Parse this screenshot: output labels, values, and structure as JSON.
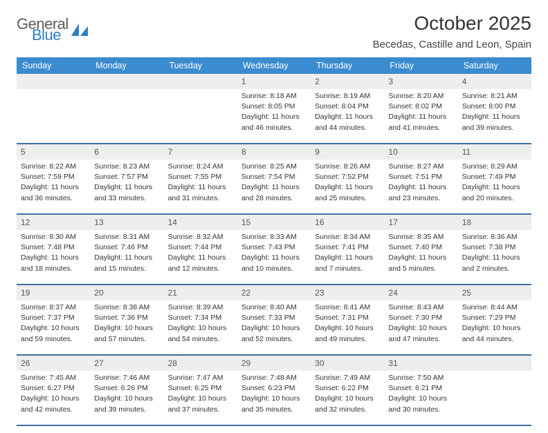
{
  "brand": {
    "word1": "General",
    "word2": "Blue",
    "accent": "#2f7dc4"
  },
  "title": "October 2025",
  "location": "Becedas, Castille and Leon, Spain",
  "colors": {
    "header_bg": "#3b8bd0",
    "header_text": "#ffffff",
    "rule": "#3b6fa0",
    "daynum_bg": "#eeeeee",
    "page_bg": "#ffffff",
    "body_text": "#333333"
  },
  "dow": [
    "Sunday",
    "Monday",
    "Tuesday",
    "Wednesday",
    "Thursday",
    "Friday",
    "Saturday"
  ],
  "weeks": [
    [
      null,
      null,
      null,
      {
        "n": "1",
        "sr": "Sunrise: 8:18 AM",
        "ss": "Sunset: 8:05 PM",
        "d1": "Daylight: 11 hours",
        "d2": "and 46 minutes."
      },
      {
        "n": "2",
        "sr": "Sunrise: 8:19 AM",
        "ss": "Sunset: 8:04 PM",
        "d1": "Daylight: 11 hours",
        "d2": "and 44 minutes."
      },
      {
        "n": "3",
        "sr": "Sunrise: 8:20 AM",
        "ss": "Sunset: 8:02 PM",
        "d1": "Daylight: 11 hours",
        "d2": "and 41 minutes."
      },
      {
        "n": "4",
        "sr": "Sunrise: 8:21 AM",
        "ss": "Sunset: 8:00 PM",
        "d1": "Daylight: 11 hours",
        "d2": "and 39 minutes."
      }
    ],
    [
      {
        "n": "5",
        "sr": "Sunrise: 8:22 AM",
        "ss": "Sunset: 7:59 PM",
        "d1": "Daylight: 11 hours",
        "d2": "and 36 minutes."
      },
      {
        "n": "6",
        "sr": "Sunrise: 8:23 AM",
        "ss": "Sunset: 7:57 PM",
        "d1": "Daylight: 11 hours",
        "d2": "and 33 minutes."
      },
      {
        "n": "7",
        "sr": "Sunrise: 8:24 AM",
        "ss": "Sunset: 7:55 PM",
        "d1": "Daylight: 11 hours",
        "d2": "and 31 minutes."
      },
      {
        "n": "8",
        "sr": "Sunrise: 8:25 AM",
        "ss": "Sunset: 7:54 PM",
        "d1": "Daylight: 11 hours",
        "d2": "and 28 minutes."
      },
      {
        "n": "9",
        "sr": "Sunrise: 8:26 AM",
        "ss": "Sunset: 7:52 PM",
        "d1": "Daylight: 11 hours",
        "d2": "and 25 minutes."
      },
      {
        "n": "10",
        "sr": "Sunrise: 8:27 AM",
        "ss": "Sunset: 7:51 PM",
        "d1": "Daylight: 11 hours",
        "d2": "and 23 minutes."
      },
      {
        "n": "11",
        "sr": "Sunrise: 8:29 AM",
        "ss": "Sunset: 7:49 PM",
        "d1": "Daylight: 11 hours",
        "d2": "and 20 minutes."
      }
    ],
    [
      {
        "n": "12",
        "sr": "Sunrise: 8:30 AM",
        "ss": "Sunset: 7:48 PM",
        "d1": "Daylight: 11 hours",
        "d2": "and 18 minutes."
      },
      {
        "n": "13",
        "sr": "Sunrise: 8:31 AM",
        "ss": "Sunset: 7:46 PM",
        "d1": "Daylight: 11 hours",
        "d2": "and 15 minutes."
      },
      {
        "n": "14",
        "sr": "Sunrise: 8:32 AM",
        "ss": "Sunset: 7:44 PM",
        "d1": "Daylight: 11 hours",
        "d2": "and 12 minutes."
      },
      {
        "n": "15",
        "sr": "Sunrise: 8:33 AM",
        "ss": "Sunset: 7:43 PM",
        "d1": "Daylight: 11 hours",
        "d2": "and 10 minutes."
      },
      {
        "n": "16",
        "sr": "Sunrise: 8:34 AM",
        "ss": "Sunset: 7:41 PM",
        "d1": "Daylight: 11 hours",
        "d2": "and 7 minutes."
      },
      {
        "n": "17",
        "sr": "Sunrise: 8:35 AM",
        "ss": "Sunset: 7:40 PM",
        "d1": "Daylight: 11 hours",
        "d2": "and 5 minutes."
      },
      {
        "n": "18",
        "sr": "Sunrise: 8:36 AM",
        "ss": "Sunset: 7:38 PM",
        "d1": "Daylight: 11 hours",
        "d2": "and 2 minutes."
      }
    ],
    [
      {
        "n": "19",
        "sr": "Sunrise: 8:37 AM",
        "ss": "Sunset: 7:37 PM",
        "d1": "Daylight: 10 hours",
        "d2": "and 59 minutes."
      },
      {
        "n": "20",
        "sr": "Sunrise: 8:38 AM",
        "ss": "Sunset: 7:36 PM",
        "d1": "Daylight: 10 hours",
        "d2": "and 57 minutes."
      },
      {
        "n": "21",
        "sr": "Sunrise: 8:39 AM",
        "ss": "Sunset: 7:34 PM",
        "d1": "Daylight: 10 hours",
        "d2": "and 54 minutes."
      },
      {
        "n": "22",
        "sr": "Sunrise: 8:40 AM",
        "ss": "Sunset: 7:33 PM",
        "d1": "Daylight: 10 hours",
        "d2": "and 52 minutes."
      },
      {
        "n": "23",
        "sr": "Sunrise: 8:41 AM",
        "ss": "Sunset: 7:31 PM",
        "d1": "Daylight: 10 hours",
        "d2": "and 49 minutes."
      },
      {
        "n": "24",
        "sr": "Sunrise: 8:43 AM",
        "ss": "Sunset: 7:30 PM",
        "d1": "Daylight: 10 hours",
        "d2": "and 47 minutes."
      },
      {
        "n": "25",
        "sr": "Sunrise: 8:44 AM",
        "ss": "Sunset: 7:29 PM",
        "d1": "Daylight: 10 hours",
        "d2": "and 44 minutes."
      }
    ],
    [
      {
        "n": "26",
        "sr": "Sunrise: 7:45 AM",
        "ss": "Sunset: 6:27 PM",
        "d1": "Daylight: 10 hours",
        "d2": "and 42 minutes."
      },
      {
        "n": "27",
        "sr": "Sunrise: 7:46 AM",
        "ss": "Sunset: 6:26 PM",
        "d1": "Daylight: 10 hours",
        "d2": "and 39 minutes."
      },
      {
        "n": "28",
        "sr": "Sunrise: 7:47 AM",
        "ss": "Sunset: 6:25 PM",
        "d1": "Daylight: 10 hours",
        "d2": "and 37 minutes."
      },
      {
        "n": "29",
        "sr": "Sunrise: 7:48 AM",
        "ss": "Sunset: 6:23 PM",
        "d1": "Daylight: 10 hours",
        "d2": "and 35 minutes."
      },
      {
        "n": "30",
        "sr": "Sunrise: 7:49 AM",
        "ss": "Sunset: 6:22 PM",
        "d1": "Daylight: 10 hours",
        "d2": "and 32 minutes."
      },
      {
        "n": "31",
        "sr": "Sunrise: 7:50 AM",
        "ss": "Sunset: 6:21 PM",
        "d1": "Daylight: 10 hours",
        "d2": "and 30 minutes."
      },
      null
    ]
  ]
}
